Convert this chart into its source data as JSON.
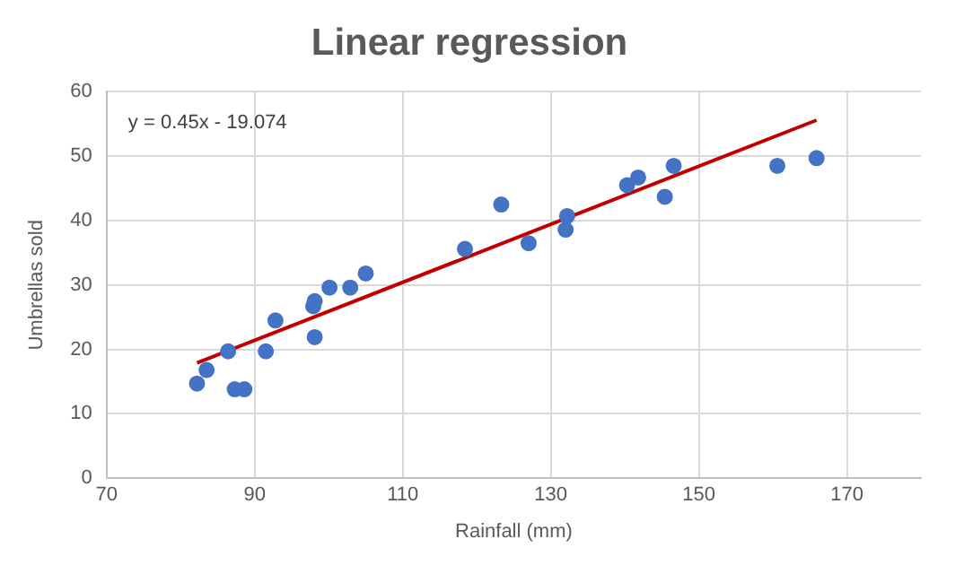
{
  "chart_data": {
    "type": "scatter",
    "title": "Linear regression",
    "xlabel": "Rainfall (mm)",
    "ylabel": "Umbrellas sold",
    "annotations": [
      "y = 0.45x - 19.074"
    ],
    "series": [
      {
        "color": "#4472c4",
        "marker": "circle",
        "x": [
          82.2,
          83.5,
          86.4,
          87.3,
          88.6,
          91.5,
          92.8,
          97.9,
          98.1,
          98.1,
          100.1,
          102.9,
          105,
          118.4,
          123.3,
          127,
          132,
          132.2,
          140.3,
          141.8,
          145.4,
          146.6,
          160.6,
          165.9
        ],
        "values": [
          14.7,
          16.8,
          19.7,
          13.8,
          13.8,
          19.7,
          24.5,
          26.7,
          27.5,
          21.9,
          29.6,
          29.6,
          31.8,
          35.6,
          42.5,
          36.5,
          38.6,
          40.7,
          45.5,
          46.7,
          43.7,
          48.5,
          48.5,
          49.7
        ]
      },
      {
        "type": "line",
        "color": "#c00000",
        "marker": "none",
        "line_style": "solid",
        "x": [
          82.2,
          165.9
        ],
        "values": [
          17.9,
          55.6
        ]
      }
    ],
    "xlim": [
      70,
      180
    ],
    "xticks": [
      70,
      90,
      110,
      130,
      150,
      170
    ],
    "ylim": [
      0,
      60
    ],
    "yticks": [
      0,
      10,
      20,
      30,
      40,
      50,
      60
    ],
    "grid": true,
    "legend": false
  }
}
